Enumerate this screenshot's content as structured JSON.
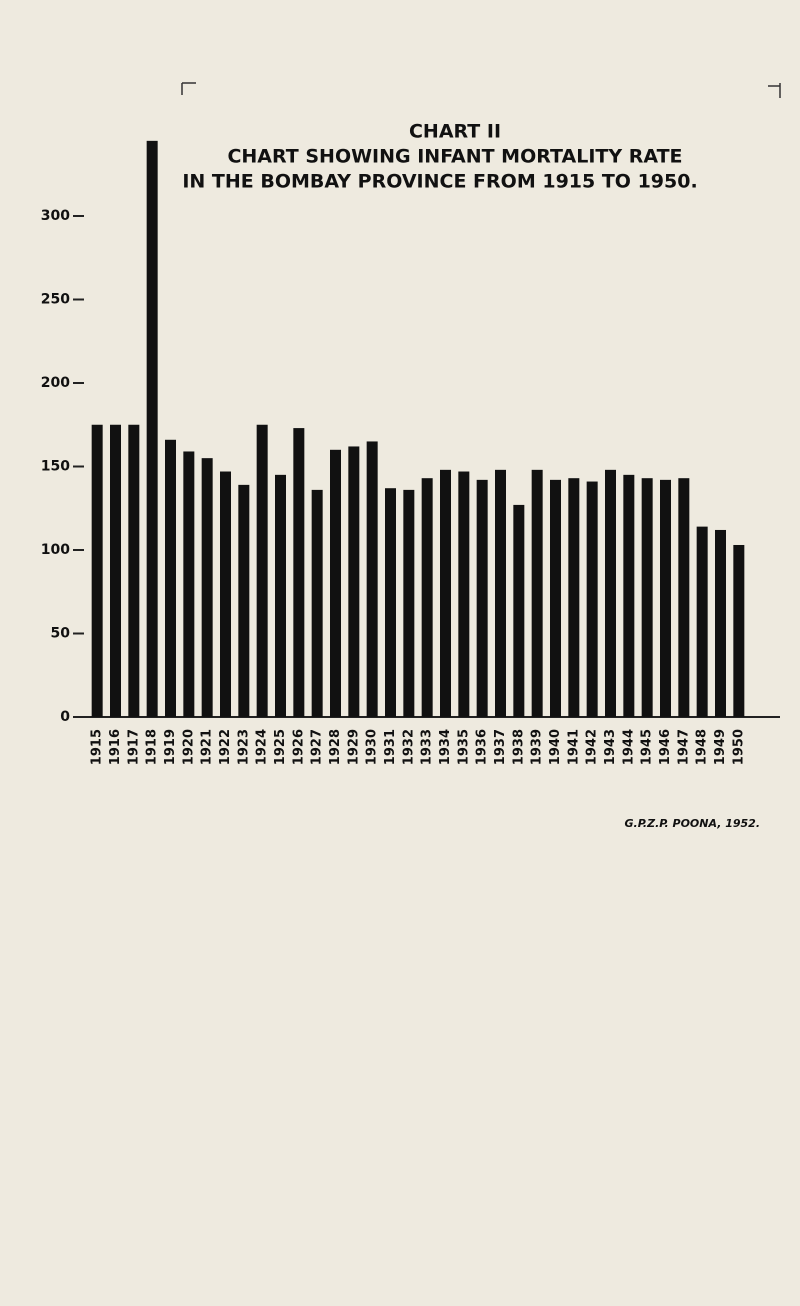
{
  "chart_data": {
    "type": "bar",
    "label": "CHART II",
    "title": "CHART SHOWING INFANT MORTALITY RATE",
    "subtitle": "IN THE BOMBAY PROVINCE FROM 1915 TO 1950.",
    "footer": "G.P.Z.P. POONA, 1952.",
    "categories": [
      "1915",
      "1916",
      "1917",
      "1918",
      "1919",
      "1920",
      "1921",
      "1922",
      "1923",
      "1924",
      "1925",
      "1926",
      "1927",
      "1928",
      "1929",
      "1930",
      "1931",
      "1932",
      "1933",
      "1934",
      "1935",
      "1936",
      "1937",
      "1938",
      "1939",
      "1940",
      "1941",
      "1942",
      "1943",
      "1944",
      "1945",
      "1946",
      "1947",
      "1948",
      "1949",
      "1950"
    ],
    "values": [
      175,
      175,
      175,
      345,
      166,
      159,
      155,
      147,
      139,
      175,
      145,
      173,
      136,
      160,
      162,
      165,
      137,
      136,
      143,
      148,
      147,
      142,
      148,
      127,
      148,
      142,
      143,
      141,
      148,
      145,
      143,
      142,
      143,
      114,
      112,
      103
    ],
    "color": "#111111",
    "ylim": [
      0,
      350
    ],
    "yticks": [
      0,
      50,
      100,
      150,
      200,
      250,
      300
    ],
    "grid": false
  }
}
